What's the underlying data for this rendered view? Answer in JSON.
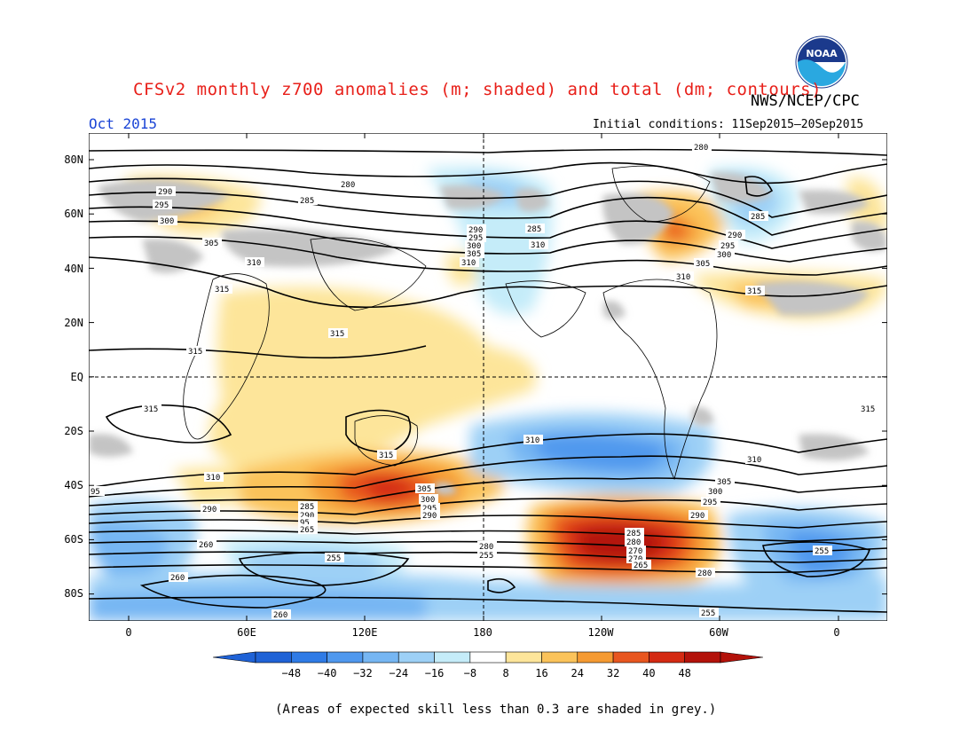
{
  "header": {
    "title": "CFSv2 monthly z700 anomalies (m; shaded) and total (dm; contours)",
    "agency": "NWS/NCEP/CPC",
    "month": "Oct 2015",
    "initial_conditions": "Initial conditions: 11Sep2015–20Sep2015",
    "logo_text": "NOAA"
  },
  "axes": {
    "lat_labels": [
      "80N",
      "60N",
      "40N",
      "20N",
      "EQ",
      "20S",
      "40S",
      "60S",
      "80S"
    ],
    "lon_labels": [
      "0",
      "60E",
      "120E",
      "180",
      "120W",
      "60W",
      "0"
    ]
  },
  "colorbar": {
    "ticks": [
      "−48",
      "−40",
      "−32",
      "−24",
      "−16",
      "−8",
      "8",
      "16",
      "24",
      "32",
      "40",
      "48"
    ],
    "colors": [
      "#1f62d6",
      "#2f7be6",
      "#4f98ee",
      "#76b6f3",
      "#9dd0f6",
      "#c5ecf9",
      "#ffffff",
      "#fde59a",
      "#fbc35a",
      "#f59a32",
      "#e8561f",
      "#d42a12",
      "#b3120a"
    ]
  },
  "contour_labels": [
    "280",
    "285",
    "290",
    "295",
    "300",
    "305",
    "310",
    "315",
    "255",
    "260",
    "265",
    "270",
    "95"
  ],
  "footer": "(Areas of expected skill less than 0.3 are shaded in grey.)",
  "colors": {
    "title": "#e8201a",
    "month": "#1b45d6",
    "skill_grey": "#c4c4c4"
  }
}
